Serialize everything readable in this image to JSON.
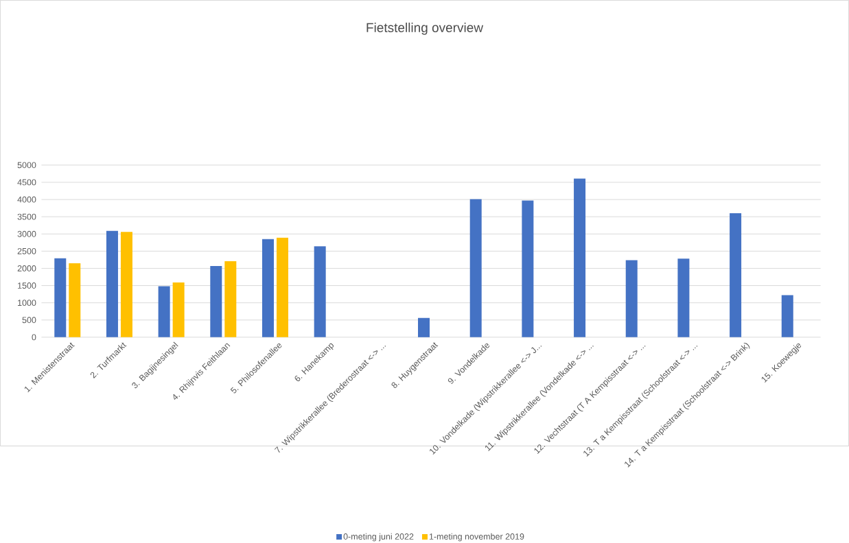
{
  "chart_data": {
    "type": "bar",
    "title": "Fietstelling overview",
    "categories": [
      "1. Menistenstraat",
      "2. Turfmarkt",
      "3. Bagijnesingel",
      "4. Rhijnvis Feithlaan",
      "5. Philosofenallee",
      "6. Hanekamp",
      "7. Wipstrikkerallee (Brederostraat <-> ...",
      "8. Huygenstraat",
      "9. Vondelkade",
      "10. Vondelkade (Wipstrikkerallee <-> J...",
      "11. Wipstrikkerallee (Vondelkade <-> ...",
      "12. Vechtstraat (T A Kempisstraat <-> ...",
      "13. T a Kempisstraat (Schoolstraat <-> ...",
      "14. T a Kempisstraat (Schoolstraat <-> Brink)",
      "15. Koewegje"
    ],
    "series": [
      {
        "name": "0-meting juni 2022",
        "color": "#4472c4",
        "values": [
          2290,
          3090,
          1480,
          2070,
          2850,
          2640,
          null,
          560,
          4010,
          3970,
          4610,
          2240,
          2280,
          3600,
          1220
        ]
      },
      {
        "name": "1-meting november 2019",
        "color": "#ffc000",
        "values": [
          2150,
          3060,
          1590,
          2210,
          2890,
          null,
          null,
          null,
          null,
          null,
          null,
          null,
          null,
          null,
          null
        ]
      }
    ],
    "ylim": [
      0,
      5000
    ],
    "yticks": [
      0,
      500,
      1000,
      1500,
      2000,
      2500,
      3000,
      3500,
      4000,
      4500,
      5000
    ],
    "grid": "y",
    "legend": "bottom"
  }
}
